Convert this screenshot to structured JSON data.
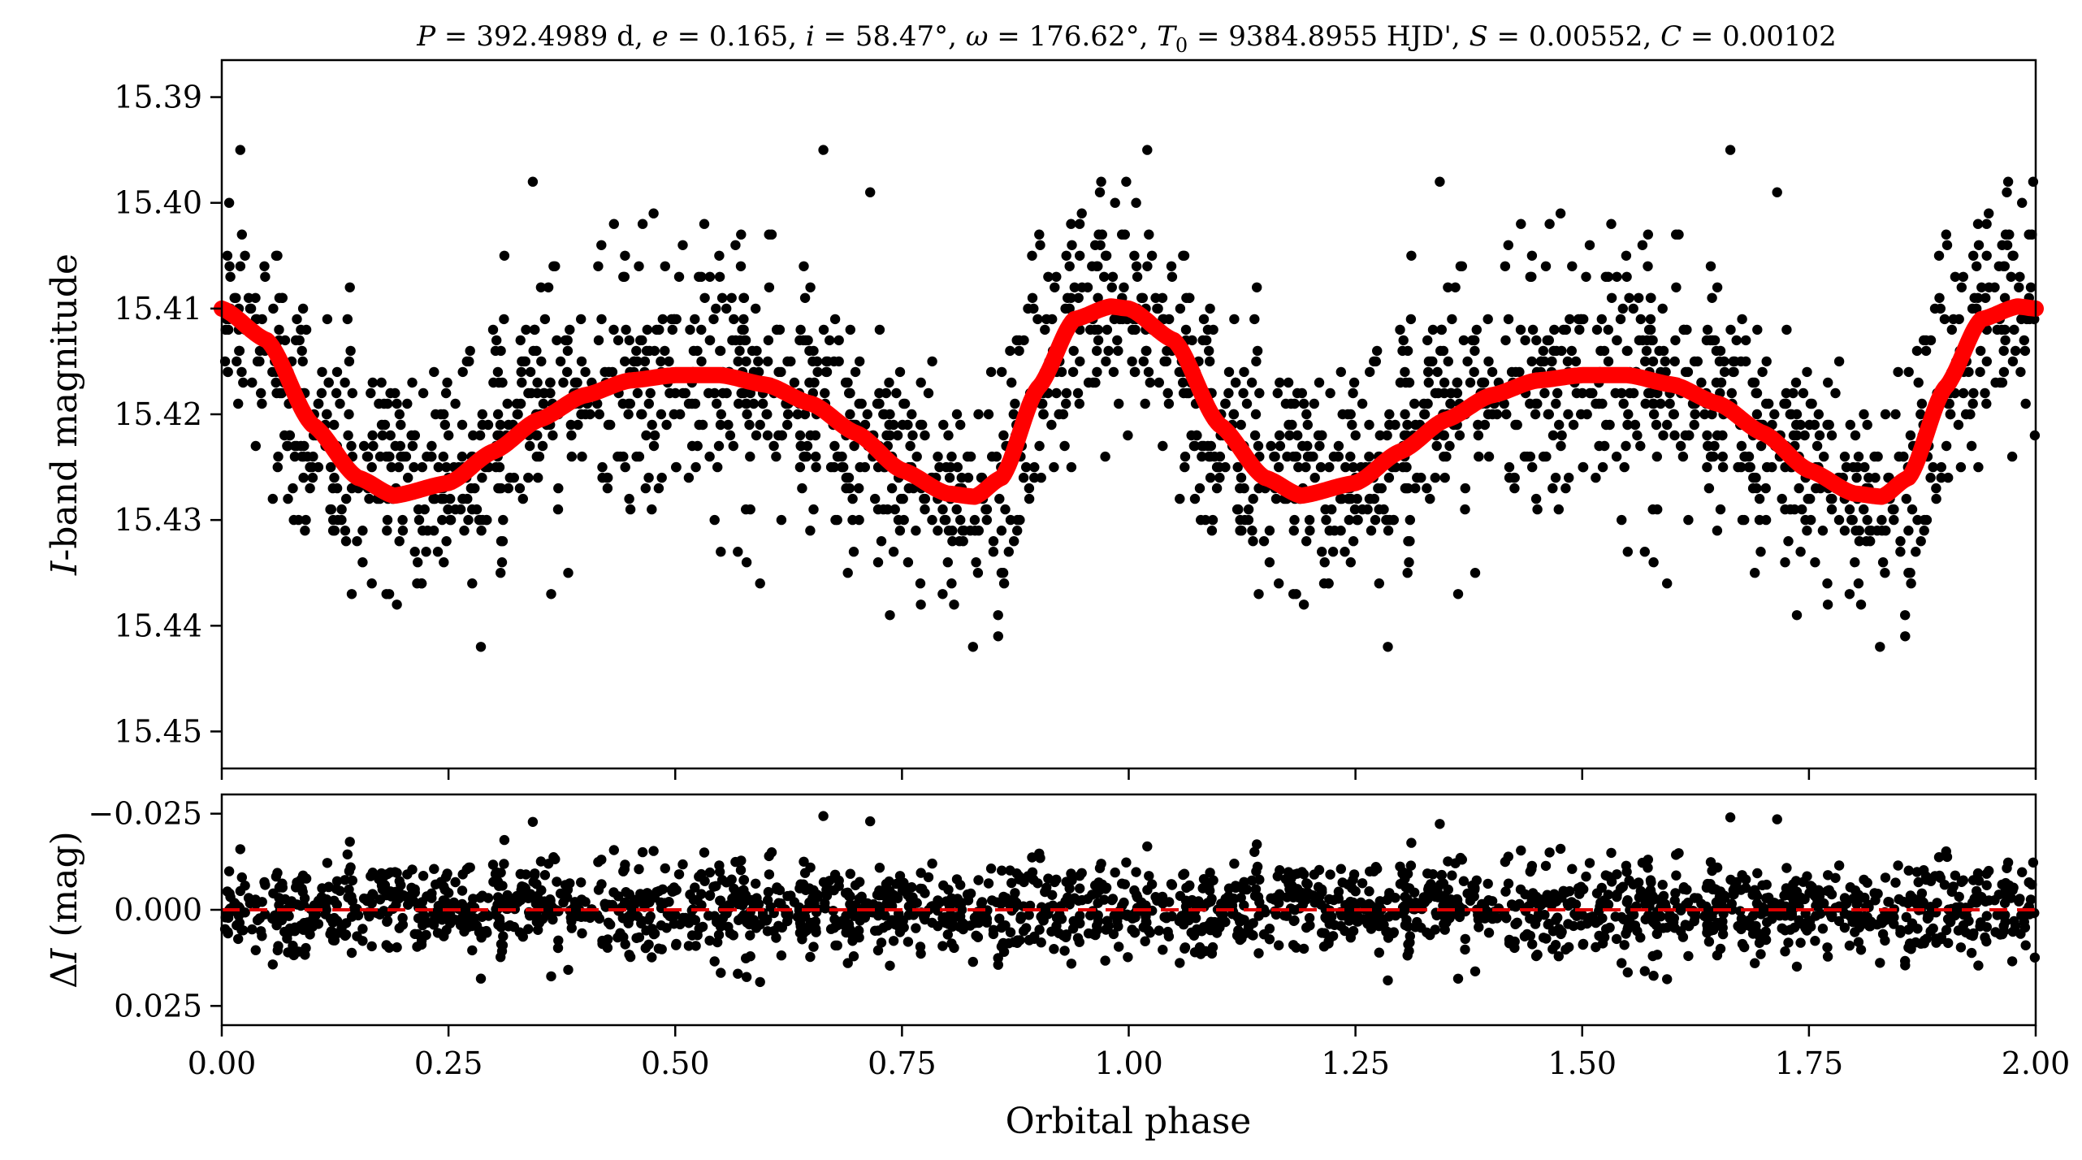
{
  "chart_data": [
    {
      "type": "scatter",
      "panel": "top",
      "title": "P = 392.4989 d, e = 0.165, i = 58.47°, ω = 176.62°, T0 = 9384.8955 HJD', S = 0.00552, C = 0.00102",
      "xlabel": "",
      "ylabel": "I-band magnitude",
      "ylabel_italic": "I",
      "ylabel_rest": "-band magnitude",
      "xlim": [
        0.0,
        2.0
      ],
      "ylim": [
        15.4535,
        15.3865
      ],
      "y_inverted": true,
      "yticks": [
        15.39,
        15.4,
        15.41,
        15.42,
        15.43,
        15.44,
        15.45
      ],
      "ytick_labels": [
        "15.39",
        "15.40",
        "15.41",
        "15.42",
        "15.43",
        "15.44",
        "15.45"
      ],
      "xticks": [
        0.0,
        0.25,
        0.5,
        0.75,
        1.0,
        1.25,
        1.5,
        1.75,
        2.0
      ],
      "series": [
        {
          "name": "observations",
          "kind": "points",
          "color": "#000000",
          "description": "~2000 photometric points repeated over two phase cycles, scatter about model with sigma ~0.006 mag"
        },
        {
          "name": "model",
          "kind": "line",
          "color": "#ff0000",
          "x": [
            0.0,
            0.05,
            0.1,
            0.15,
            0.19,
            0.25,
            0.3,
            0.35,
            0.4,
            0.45,
            0.5,
            0.55,
            0.6,
            0.65,
            0.7,
            0.75,
            0.8,
            0.83,
            0.86,
            0.9,
            0.94,
            0.98,
            1.0
          ],
          "y": [
            15.41,
            15.413,
            15.421,
            15.426,
            15.4277,
            15.4265,
            15.4235,
            15.4205,
            15.4182,
            15.4168,
            15.4163,
            15.4163,
            15.4172,
            15.419,
            15.4218,
            15.4253,
            15.4275,
            15.4278,
            15.426,
            15.4175,
            15.411,
            15.4098,
            15.41
          ],
          "repeat_period": 1.0
        }
      ]
    },
    {
      "type": "scatter",
      "panel": "bottom",
      "xlabel": "Orbital phase",
      "ylabel": "ΔI (mag)",
      "ylabel_delta": "Δ",
      "ylabel_italic": "I",
      "ylabel_rest": " (mag)",
      "xlim": [
        0.0,
        2.0
      ],
      "ylim": [
        0.03,
        -0.03
      ],
      "y_inverted": true,
      "yticks": [
        -0.025,
        0.0,
        0.025
      ],
      "ytick_labels": [
        "−0.025",
        "0.000",
        "0.025"
      ],
      "xticks": [
        0.0,
        0.25,
        0.5,
        0.75,
        1.0,
        1.25,
        1.5,
        1.75,
        2.0
      ],
      "xtick_labels": [
        "0.00",
        "0.25",
        "0.50",
        "0.75",
        "1.00",
        "1.25",
        "1.50",
        "1.75",
        "2.00"
      ],
      "series": [
        {
          "name": "residuals",
          "kind": "points",
          "color": "#000000",
          "description": "residuals centered at 0 with sigma ~0.006 mag"
        },
        {
          "name": "zero line",
          "kind": "hline",
          "value": 0.0,
          "color": "#cc0000",
          "style": "dashed"
        }
      ]
    }
  ],
  "title_parts": {
    "P_sym": "P",
    "P_val": " = 392.4989 d, ",
    "e_sym": "e",
    "e_val": " = 0.165, ",
    "i_sym": "i",
    "i_val": " = 58.47°, ",
    "w_sym": "ω",
    "w_val": " = 176.62°, ",
    "T_sym": "T",
    "T_sub": "0",
    "T_val": " = 9384.8955 HJD', ",
    "S_sym": "S",
    "S_val": " = 0.00552, ",
    "C_sym": "C",
    "C_val": " = 0.00102"
  }
}
